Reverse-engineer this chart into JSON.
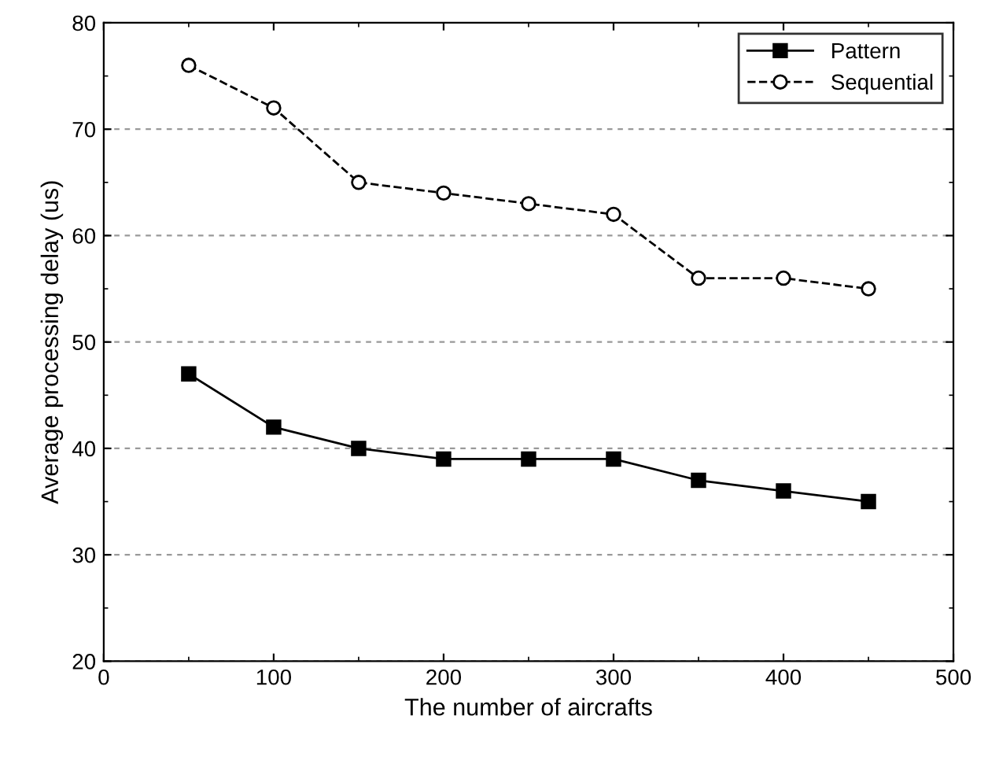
{
  "chart_data": {
    "type": "line",
    "xlabel": "The number of aircrafts",
    "ylabel": "Average processing delay (us)",
    "x": [
      50,
      100,
      150,
      200,
      250,
      300,
      350,
      400,
      450
    ],
    "series": [
      {
        "name": "Pattern",
        "color": "#000000",
        "marker": "square",
        "line_style": "solid",
        "values": [
          47,
          42,
          40,
          39,
          39,
          39,
          37,
          36,
          35
        ]
      },
      {
        "name": "Sequential",
        "color": "#000000",
        "marker": "circle",
        "line_style": "dashed",
        "values": [
          76,
          72,
          65,
          64,
          63,
          62,
          56,
          56,
          55
        ]
      }
    ],
    "xlim": [
      0,
      500
    ],
    "xticks": [
      0,
      100,
      200,
      300,
      400,
      500
    ],
    "ylim": [
      20,
      80
    ],
    "yticks": [
      20,
      30,
      40,
      50,
      60,
      70,
      80
    ],
    "grid": "y",
    "legend": "top right"
  }
}
